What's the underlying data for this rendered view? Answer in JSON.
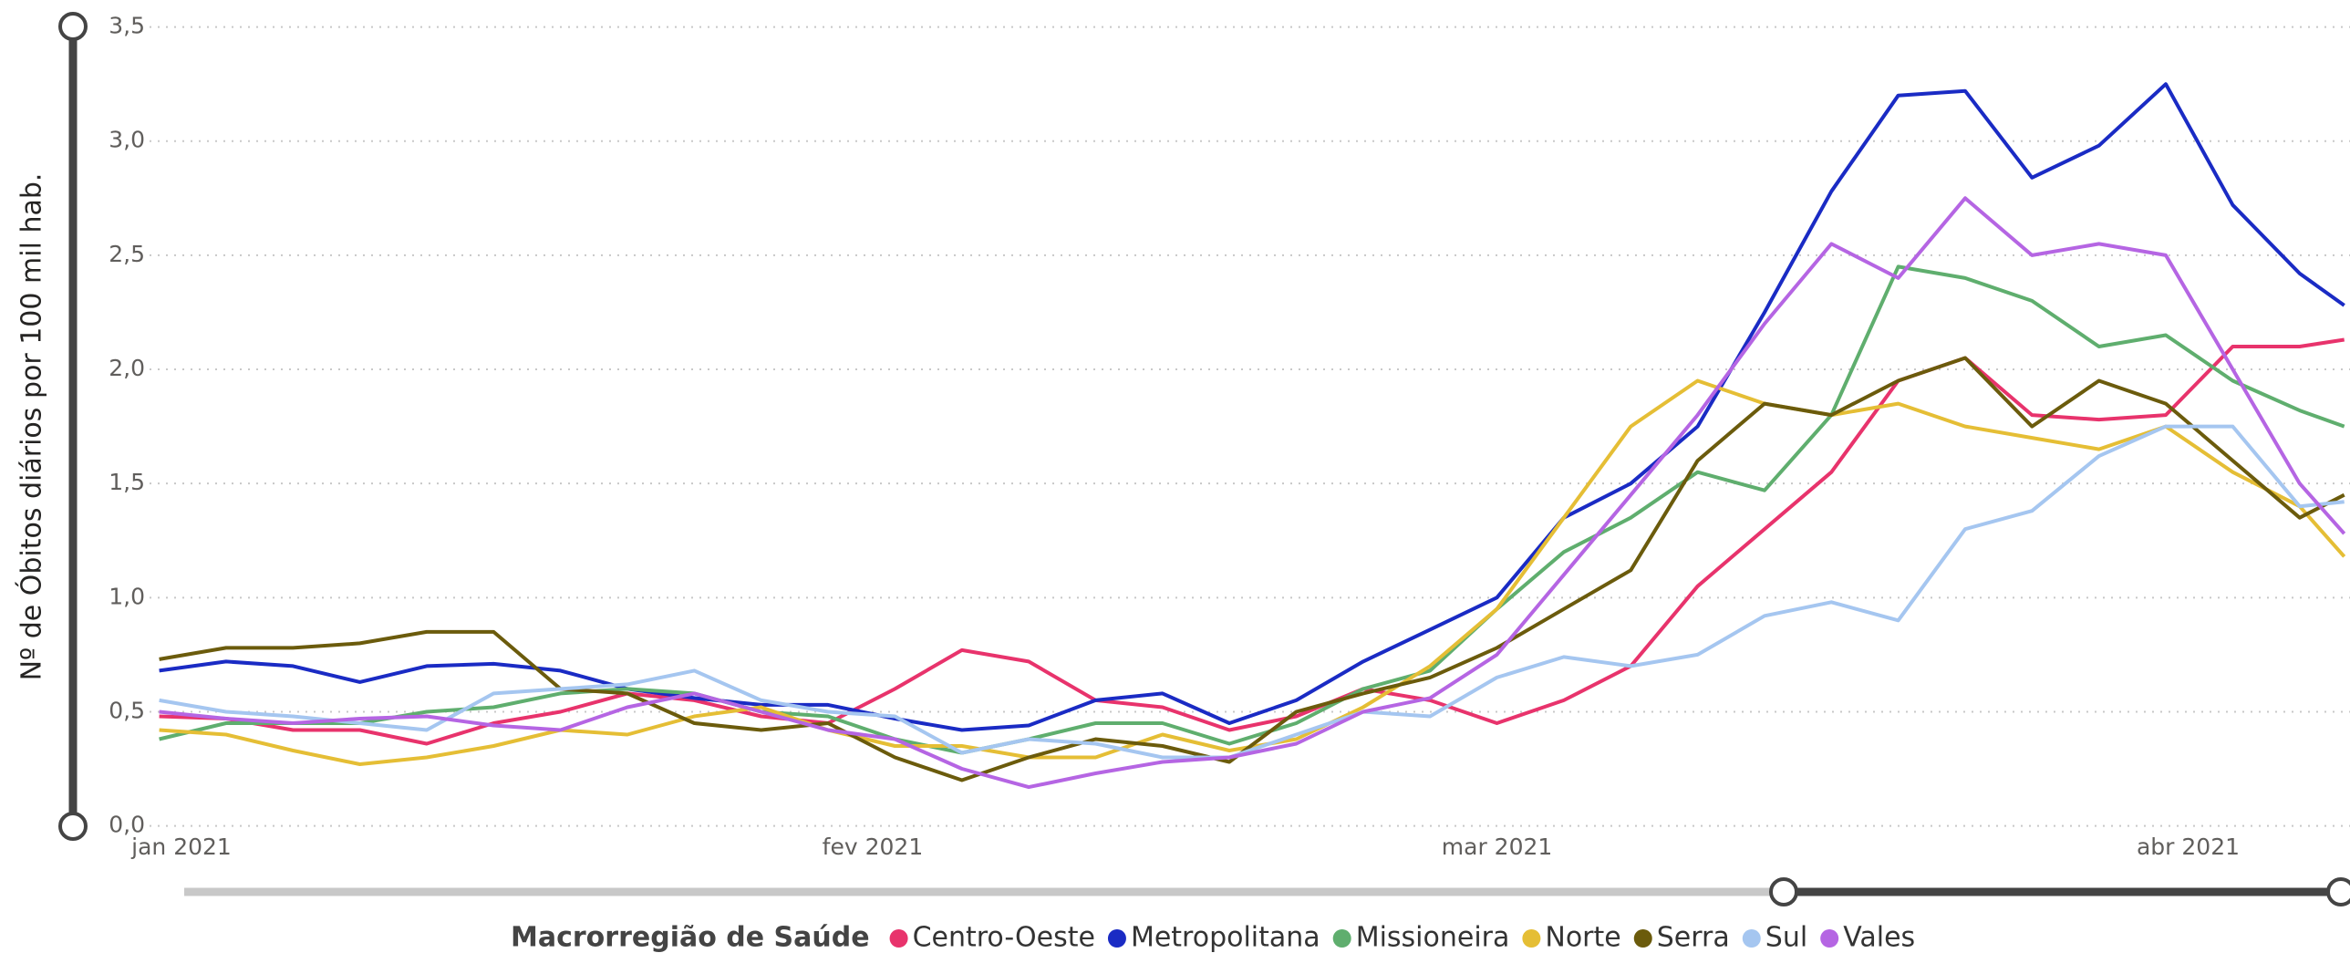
{
  "chart_data": {
    "type": "line",
    "y_label": "Nº de Óbitos diários por 100 mil hab.",
    "legend_title": "Macrorregião de Saúde",
    "x": [
      -1,
      2,
      5,
      8,
      11,
      14,
      17,
      20,
      23,
      26,
      29,
      32,
      35,
      38,
      41,
      44,
      47,
      50,
      53,
      56,
      59,
      62,
      65,
      68,
      71,
      74,
      77,
      80,
      83,
      86,
      89,
      92,
      95,
      97
    ],
    "xlim": [
      -1,
      97
    ],
    "xticks": [
      {
        "value": 0,
        "label": "jan 2021"
      },
      {
        "value": 31,
        "label": "fev 2021"
      },
      {
        "value": 59,
        "label": "mar 2021"
      },
      {
        "value": 90,
        "label": "abr 2021"
      }
    ],
    "ylim": [
      0,
      3.5
    ],
    "yticks": [
      {
        "value": 0,
        "label": "0,0"
      },
      {
        "value": 0.5,
        "label": "0,5"
      },
      {
        "value": 1,
        "label": "1,0"
      },
      {
        "value": 1.5,
        "label": "1,5"
      },
      {
        "value": 2,
        "label": "2,0"
      },
      {
        "value": 2.5,
        "label": "2,5"
      },
      {
        "value": 3,
        "label": "3,0"
      },
      {
        "value": 3.5,
        "label": "3,5"
      }
    ],
    "grid": true,
    "legend": "bottom",
    "series": [
      {
        "name": "Centro-Oeste",
        "color": "#e8336c",
        "values": [
          0.48,
          0.47,
          0.42,
          0.42,
          0.36,
          0.45,
          0.5,
          0.58,
          0.55,
          0.48,
          0.45,
          0.6,
          0.77,
          0.72,
          0.55,
          0.52,
          0.42,
          0.48,
          0.6,
          0.55,
          0.45,
          0.55,
          0.7,
          1.05,
          1.3,
          1.55,
          1.95,
          2.05,
          1.8,
          1.78,
          1.8,
          2.1,
          2.1,
          2.13
        ]
      },
      {
        "name": "Metropolitana",
        "color": "#1a2bc4",
        "values": [
          0.68,
          0.72,
          0.7,
          0.63,
          0.7,
          0.71,
          0.68,
          0.6,
          0.56,
          0.53,
          0.53,
          0.47,
          0.42,
          0.44,
          0.55,
          0.58,
          0.45,
          0.55,
          0.72,
          0.86,
          1.0,
          1.35,
          1.5,
          1.75,
          2.25,
          2.78,
          3.2,
          3.22,
          2.84,
          2.98,
          3.25,
          2.72,
          2.42,
          2.28
        ]
      },
      {
        "name": "Missioneira",
        "color": "#5fae6e",
        "values": [
          0.38,
          0.45,
          0.45,
          0.45,
          0.5,
          0.52,
          0.58,
          0.6,
          0.58,
          0.5,
          0.48,
          0.38,
          0.32,
          0.38,
          0.45,
          0.45,
          0.36,
          0.45,
          0.6,
          0.68,
          0.95,
          1.2,
          1.35,
          1.55,
          1.47,
          1.8,
          2.45,
          2.4,
          2.3,
          2.1,
          2.15,
          1.95,
          1.82,
          1.75
        ]
      },
      {
        "name": "Norte",
        "color": "#e5be35",
        "values": [
          0.42,
          0.4,
          0.33,
          0.27,
          0.3,
          0.35,
          0.42,
          0.4,
          0.48,
          0.52,
          0.42,
          0.35,
          0.35,
          0.3,
          0.3,
          0.4,
          0.33,
          0.38,
          0.52,
          0.7,
          0.95,
          1.35,
          1.75,
          1.95,
          1.85,
          1.8,
          1.85,
          1.75,
          1.7,
          1.65,
          1.75,
          1.55,
          1.4,
          1.18
        ]
      },
      {
        "name": "Serra",
        "color": "#6b5b0c",
        "values": [
          0.73,
          0.78,
          0.78,
          0.8,
          0.85,
          0.85,
          0.6,
          0.58,
          0.45,
          0.42,
          0.45,
          0.3,
          0.2,
          0.3,
          0.38,
          0.35,
          0.28,
          0.5,
          0.58,
          0.65,
          0.78,
          0.95,
          1.12,
          1.6,
          1.85,
          1.8,
          1.95,
          2.05,
          1.75,
          1.95,
          1.85,
          1.6,
          1.35,
          1.45
        ]
      },
      {
        "name": "Sul",
        "color": "#a5c6f0",
        "values": [
          0.55,
          0.5,
          0.48,
          0.45,
          0.42,
          0.58,
          0.6,
          0.62,
          0.68,
          0.55,
          0.5,
          0.48,
          0.32,
          0.38,
          0.36,
          0.3,
          0.3,
          0.4,
          0.5,
          0.48,
          0.65,
          0.74,
          0.7,
          0.75,
          0.92,
          0.98,
          0.9,
          1.3,
          1.38,
          1.62,
          1.75,
          1.75,
          1.4,
          1.42
        ]
      },
      {
        "name": "Vales",
        "color": "#b565e3",
        "values": [
          0.5,
          0.47,
          0.45,
          0.47,
          0.48,
          0.44,
          0.42,
          0.52,
          0.58,
          0.5,
          0.42,
          0.38,
          0.25,
          0.17,
          0.23,
          0.28,
          0.3,
          0.36,
          0.5,
          0.56,
          0.75,
          1.1,
          1.45,
          1.8,
          2.2,
          2.55,
          2.4,
          2.75,
          2.5,
          2.55,
          2.5,
          2.0,
          1.5,
          1.28
        ]
      }
    ]
  }
}
